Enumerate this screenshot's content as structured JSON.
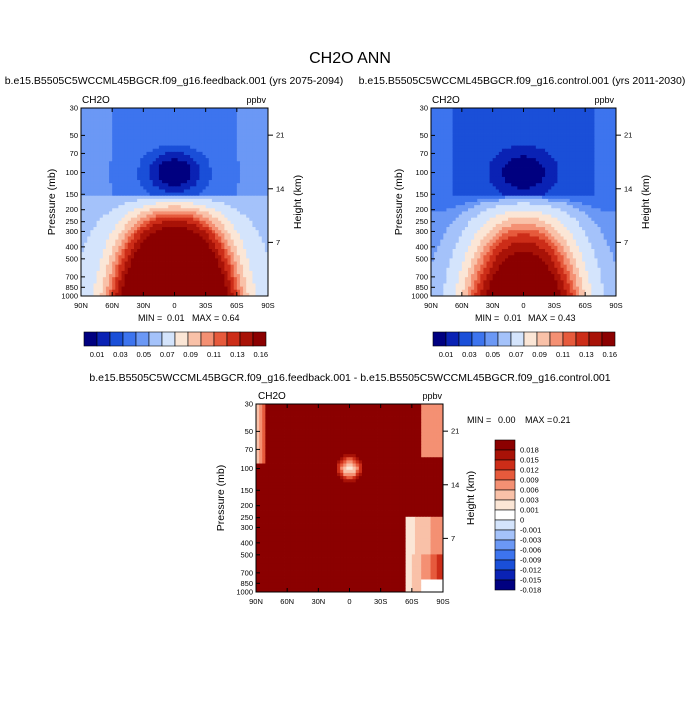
{
  "figure": {
    "title": "CH2O ANN"
  },
  "colors": {
    "seq": [
      "#000080",
      "#0a22b4",
      "#1a4fd8",
      "#3d74ee",
      "#6b98f5",
      "#a4c2fa",
      "#d4e4fc",
      "#fbe6d6",
      "#f9c1a8",
      "#f49073",
      "#e65a3c",
      "#cc2d18",
      "#a81207",
      "#8b0000"
    ],
    "diff": [
      "#8b0000",
      "#a81207",
      "#cc2d18",
      "#e65a3c",
      "#f49073",
      "#f9c1a8",
      "#fbe6d6",
      "#ffffff",
      "#d4e4fc",
      "#a4c2fa",
      "#6b98f5",
      "#3d74ee",
      "#1a4fd8",
      "#0a22b4",
      "#000080"
    ],
    "plot_edge": "#000000",
    "background": "#ffffff"
  },
  "chart_data": [
    {
      "id": "panel1",
      "type": "heatmap",
      "title": "b.e15.B5505C5WCCML45BGCR.f09_g16.feedback.001 (yrs 2075-2094)",
      "left_label": "CH2O",
      "right_label": "ppbv",
      "xlabel": "",
      "ylabel": "Pressure (mb)",
      "y2label": "Height (km)",
      "x_ticks": [
        "90N",
        "60N",
        "30N",
        "0",
        "30S",
        "60S",
        "90S"
      ],
      "x_tick_values": [
        90,
        60,
        30,
        0,
        -30,
        -60,
        -90
      ],
      "xlim": [
        90,
        -90
      ],
      "y_ticks": [
        30,
        50,
        70,
        100,
        150,
        200,
        250,
        300,
        400,
        500,
        700,
        850,
        1000
      ],
      "ylim": [
        30,
        1000
      ],
      "y2_ticks": [
        21,
        14,
        7
      ],
      "stats": {
        "min_label": "MIN =",
        "min": "0.01",
        "max_label": "MAX =",
        "max": "0.64"
      },
      "levels": [
        "0.01",
        "0.03",
        "0.05",
        "0.07",
        "0.09",
        "0.11",
        "0.13",
        "0.16"
      ],
      "tropo_low": 0.02,
      "upper_level": 0.016,
      "trop_peak": 0.8,
      "trop_rise": 0.045,
      "minimum_dip": 0.016,
      "pole_offset": 0.004
    },
    {
      "id": "panel2",
      "type": "heatmap",
      "title": "b.e15.B5505C5WCCML45BGCR.f09_g16.control.001 (yrs 2011-2030)",
      "left_label": "CH2O",
      "right_label": "ppbv",
      "xlabel": "",
      "ylabel": "Pressure (mb)",
      "y2label": "Height (km)",
      "x_ticks": [
        "90N",
        "60N",
        "30N",
        "0",
        "30S",
        "60S",
        "90S"
      ],
      "x_tick_values": [
        90,
        60,
        30,
        0,
        -30,
        -60,
        -90
      ],
      "xlim": [
        90,
        -90
      ],
      "y_ticks": [
        30,
        50,
        70,
        100,
        150,
        200,
        250,
        300,
        400,
        500,
        700,
        850,
        1000
      ],
      "ylim": [
        30,
        1000
      ],
      "y2_ticks": [
        21,
        14,
        7
      ],
      "stats": {
        "min_label": "MIN =",
        "min": "0.01",
        "max_label": "MAX =",
        "max": "0.43"
      },
      "levels": [
        "0.01",
        "0.03",
        "0.05",
        "0.07",
        "0.09",
        "0.11",
        "0.13",
        "0.16"
      ],
      "tropo_low": 0.012,
      "upper_level": 0.011,
      "trop_peak": 0.34,
      "trop_rise": 0.04,
      "minimum_dip": 0.011,
      "pole_offset": 0.003
    },
    {
      "id": "panel3",
      "type": "heatmap",
      "title": "b.e15.B5505C5WCCML45BGCR.f09_g16.feedback.001 - b.e15.B5505C5WCCML45BGCR.f09_g16.control.001",
      "left_label": "CH2O",
      "right_label": "ppbv",
      "xlabel": "",
      "ylabel": "Pressure (mb)",
      "y2label": "Height (km)",
      "x_ticks": [
        "90N",
        "60N",
        "30N",
        "0",
        "30S",
        "60S",
        "90S"
      ],
      "x_tick_values": [
        90,
        60,
        30,
        0,
        -30,
        -60,
        -90
      ],
      "xlim": [
        90,
        -90
      ],
      "y_ticks": [
        30,
        50,
        70,
        100,
        150,
        200,
        250,
        300,
        400,
        500,
        700,
        850,
        1000
      ],
      "ylim": [
        30,
        1000
      ],
      "y2_ticks": [
        21,
        14,
        7
      ],
      "stats": {
        "min_label": "MIN =",
        "min": "0.00",
        "max_label": "MAX =",
        "max": "0.21"
      },
      "levels": [
        "0.018",
        "0.015",
        "0.012",
        "0.009",
        "0.006",
        "0.003",
        "0.001",
        "0",
        "-0.001",
        "-0.003",
        "-0.006",
        "-0.009",
        "-0.012",
        "-0.015",
        "-0.018"
      ]
    }
  ]
}
